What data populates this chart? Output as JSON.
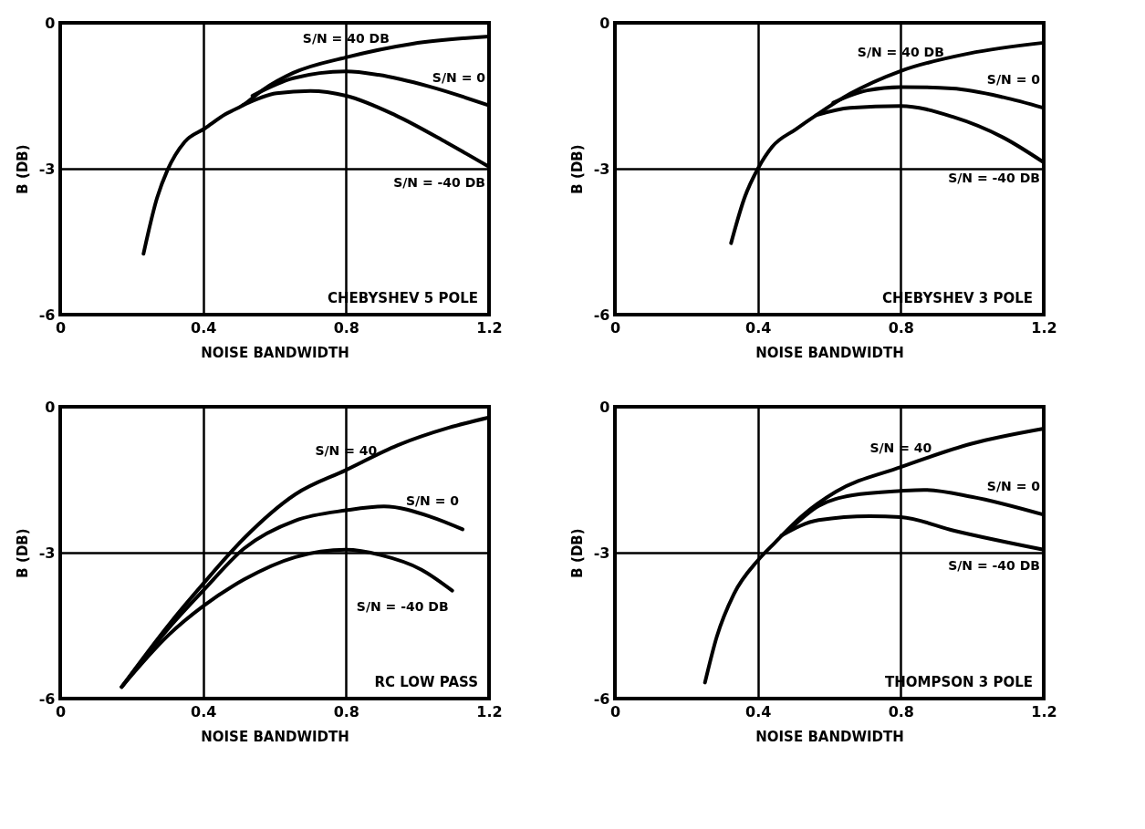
{
  "chart_data": [
    {
      "type": "line",
      "xlabel": "NOISE BANDWIDTH",
      "ylabel": "B (DB)",
      "xlim": [
        0,
        1.2
      ],
      "ylim": [
        -6,
        0
      ],
      "xticks": [
        0,
        0.4,
        0.8,
        1.2
      ],
      "yticks": [
        -6,
        -3,
        0
      ],
      "grid": true,
      "legend": false,
      "marker": "none",
      "line_style": "solid",
      "annotations": [
        "CHEBYSHEV 5 POLE"
      ],
      "series": [
        {
          "name": "S/N = 40 DB",
          "color": "#000000",
          "x": [
            0.233,
            0.271,
            0.3,
            0.348,
            0.405,
            0.462,
            0.51,
            0.567,
            0.652,
            0.8,
            0.986,
            1.2
          ],
          "values": [
            -4.75,
            -3.6,
            -3.03,
            -2.45,
            -2.17,
            -1.88,
            -1.7,
            -1.38,
            -1.03,
            -0.71,
            -0.43,
            -0.28
          ]
        },
        {
          "name": "S/N = 0",
          "color": "#000000",
          "x": [
            0.538,
            0.652,
            0.8,
            0.89,
            1.033,
            1.2
          ],
          "values": [
            -1.5,
            -1.14,
            -1.0,
            -1.07,
            -1.31,
            -1.7
          ]
        },
        {
          "name": "S/N = -40 DB",
          "color": "#000000",
          "x": [
            0.51,
            0.605,
            0.7,
            0.8,
            0.938,
            1.081,
            1.2
          ],
          "values": [
            -1.7,
            -1.45,
            -1.4,
            -1.5,
            -1.9,
            -2.46,
            -2.96
          ]
        }
      ]
    },
    {
      "type": "line",
      "xlabel": "NOISE BANDWIDTH",
      "ylabel": "B (DB)",
      "xlim": [
        0,
        1.2
      ],
      "ylim": [
        -6,
        0
      ],
      "xticks": [
        0,
        0.4,
        0.8,
        1.2
      ],
      "yticks": [
        -6,
        -3,
        0
      ],
      "grid": true,
      "legend": false,
      "marker": "none",
      "line_style": "solid",
      "annotations": [
        "CHEBYSHEV 3 POLE"
      ],
      "series": [
        {
          "name": "S/N = 40 DB",
          "color": "#000000",
          "x": [
            0.325,
            0.363,
            0.4,
            0.44,
            0.506,
            0.563,
            0.658,
            0.8,
            0.991,
            1.2
          ],
          "values": [
            -4.53,
            -3.59,
            -3.0,
            -2.55,
            -2.19,
            -1.9,
            -1.46,
            -0.99,
            -0.63,
            -0.41
          ]
        },
        {
          "name": "S/N = 0",
          "color": "#000000",
          "x": [
            0.611,
            0.706,
            0.8,
            0.944,
            1.087,
            1.2
          ],
          "values": [
            -1.64,
            -1.39,
            -1.32,
            -1.35,
            -1.53,
            -1.75
          ]
        },
        {
          "name": "S/N = -40 DB",
          "color": "#000000",
          "x": [
            0.563,
            0.658,
            0.8,
            0.944,
            1.087,
            1.2
          ],
          "values": [
            -1.9,
            -1.75,
            -1.71,
            -1.93,
            -2.36,
            -2.87
          ]
        }
      ]
    },
    {
      "type": "line",
      "xlabel": "NOISE BANDWIDTH",
      "ylabel": "B (DB)",
      "xlim": [
        0,
        1.2
      ],
      "ylim": [
        -6,
        0
      ],
      "xticks": [
        0,
        0.4,
        0.8,
        1.2
      ],
      "yticks": [
        -6,
        -3,
        0
      ],
      "grid": true,
      "legend": false,
      "marker": "none",
      "line_style": "solid",
      "annotations": [
        "RC LOW PASS"
      ],
      "series": [
        {
          "name": "S/N = 40",
          "color": "#000000",
          "x": [
            0.172,
            0.305,
            0.4,
            0.515,
            0.658,
            0.8,
            0.945,
            1.088,
            1.2
          ],
          "values": [
            -5.76,
            -4.47,
            -3.64,
            -2.7,
            -1.8,
            -1.3,
            -0.79,
            -0.43,
            -0.22
          ]
        },
        {
          "name": "S/N = 0",
          "color": "#000000",
          "x": [
            0.172,
            0.305,
            0.4,
            0.515,
            0.658,
            0.8,
            0.906,
            1.04,
            1.126
          ],
          "values": [
            -5.76,
            -4.54,
            -3.78,
            -2.91,
            -2.34,
            -2.13,
            -2.05,
            -2.27,
            -2.52
          ]
        },
        {
          "name": "S/N = -40 DB",
          "color": "#000000",
          "x": [
            0.172,
            0.305,
            0.4,
            0.515,
            0.658,
            0.8,
            0.897,
            1.011,
            1.097
          ],
          "values": [
            -5.76,
            -4.68,
            -4.1,
            -3.55,
            -3.09,
            -2.94,
            -3.05,
            -3.35,
            -3.78
          ]
        }
      ]
    },
    {
      "type": "line",
      "xlabel": "NOISE BANDWIDTH",
      "ylabel": "B (DB)",
      "xlim": [
        0,
        1.2
      ],
      "ylim": [
        -6,
        0
      ],
      "xticks": [
        0,
        0.4,
        0.8,
        1.2
      ],
      "yticks": [
        -6,
        -3,
        0
      ],
      "grid": true,
      "legend": false,
      "marker": "none",
      "line_style": "solid",
      "annotations": [
        "THOMPSON 3 POLE"
      ],
      "series": [
        {
          "name": "S/N = 40",
          "color": "#000000",
          "x": [
            0.252,
            0.285,
            0.333,
            0.4,
            0.447,
            0.523,
            0.618,
            0.8,
            0.998,
            1.2
          ],
          "values": [
            -5.67,
            -4.73,
            -3.85,
            -3.16,
            -2.8,
            -2.25,
            -1.75,
            -1.24,
            -0.76,
            -0.45
          ]
        },
        {
          "name": "S/N = 0",
          "color": "#000000",
          "x": [
            0.485,
            0.57,
            0.665,
            0.8,
            0.865,
            0.998,
            1.2
          ],
          "values": [
            -2.55,
            -2.04,
            -1.82,
            -1.73,
            -1.71,
            -1.85,
            -2.22
          ]
        },
        {
          "name": "S/N = -40 DB",
          "color": "#000000",
          "x": [
            0.466,
            0.57,
            0.713,
            0.8,
            0.95,
            1.2
          ],
          "values": [
            -2.65,
            -2.33,
            -2.25,
            -2.27,
            -2.55,
            -2.94
          ]
        }
      ]
    }
  ]
}
